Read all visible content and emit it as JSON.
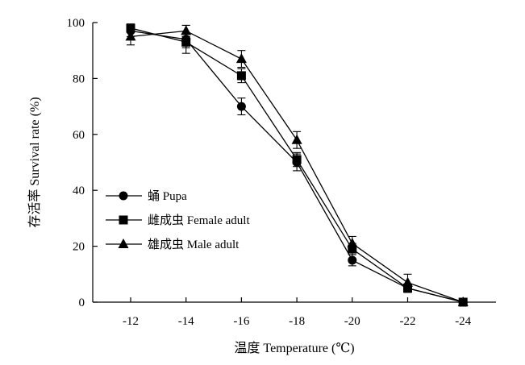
{
  "chart_data": {
    "type": "line",
    "xlabel": "温度 Temperature (℃)",
    "ylabel": "存活率 Survival rate (%)",
    "x": [
      -12,
      -14,
      -16,
      -18,
      -20,
      -22,
      -24
    ],
    "x_tick_labels": [
      "-12",
      "-14",
      "-16",
      "-18",
      "-20",
      "-22",
      "-24"
    ],
    "y_ticks": [
      0,
      20,
      40,
      60,
      80,
      100
    ],
    "y_tick_labels": [
      "0",
      "20",
      "40",
      "60",
      "80",
      "100"
    ],
    "ylim": [
      0,
      100
    ],
    "grid": false,
    "legend_position": "center-left",
    "series": [
      {
        "name": "蛹 Pupa",
        "marker": "circle",
        "values": [
          97,
          94,
          70,
          50,
          15,
          5,
          0
        ],
        "errors": [
          2,
          5,
          3,
          3,
          2,
          1.5,
          0
        ]
      },
      {
        "name": "雌成虫 Female adult",
        "marker": "square",
        "values": [
          98,
          93,
          81,
          51,
          19,
          5,
          0
        ],
        "errors": [
          1.5,
          2,
          2.5,
          2.5,
          2,
          1.5,
          0
        ]
      },
      {
        "name": "雄成虫 Male adult",
        "marker": "triangle",
        "values": [
          95,
          97,
          87,
          58,
          21,
          7,
          0
        ],
        "errors": [
          3,
          2,
          3,
          3,
          2.5,
          3,
          0
        ]
      }
    ],
    "color": "#000000"
  }
}
